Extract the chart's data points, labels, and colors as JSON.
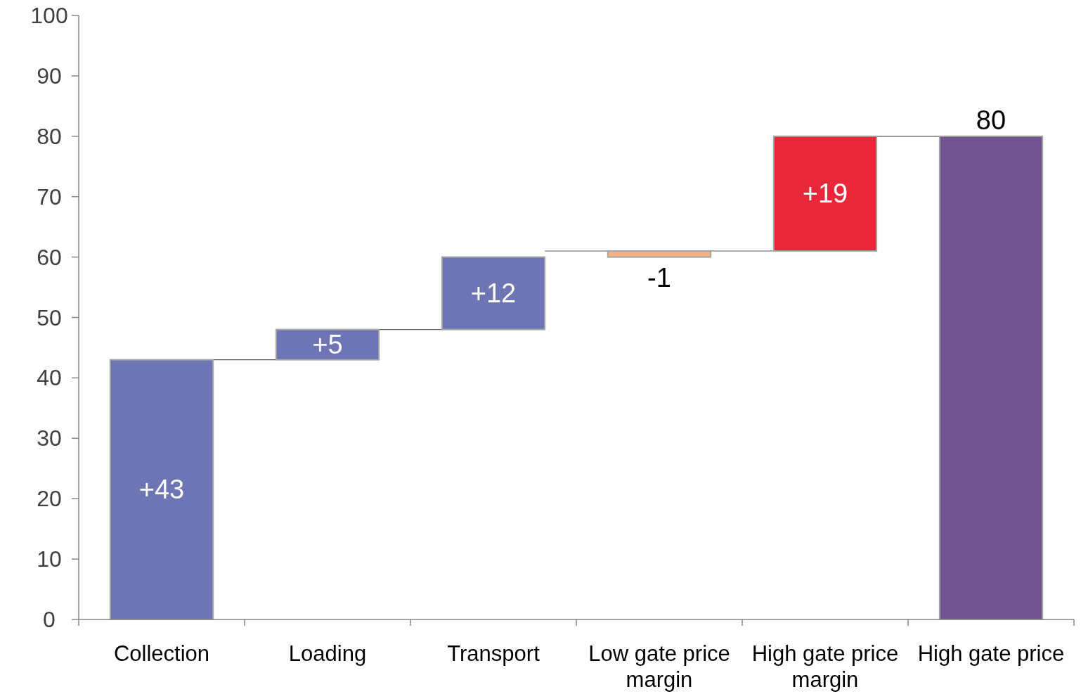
{
  "chart_data": {
    "type": "bar",
    "categories": [
      "Collection",
      "Loading",
      "Transport",
      "Low gate price margin",
      "High gate price margin",
      "High gate price"
    ],
    "values": [
      43,
      5,
      12,
      -1,
      19,
      80
    ],
    "base": [
      0,
      43,
      48,
      61,
      61,
      0
    ],
    "colors": [
      "#6e75b4",
      "#6e75b4",
      "#6e75b4",
      "#f4b183",
      "#e8283a",
      "#71538f"
    ],
    "value_labels": [
      "+43",
      "+5",
      "+12",
      "-1",
      "+19",
      "80"
    ],
    "ylim": [
      0,
      100
    ],
    "yticks": [
      0,
      10,
      20,
      30,
      40,
      50,
      60,
      70,
      80,
      90,
      100
    ],
    "grid": false
  }
}
